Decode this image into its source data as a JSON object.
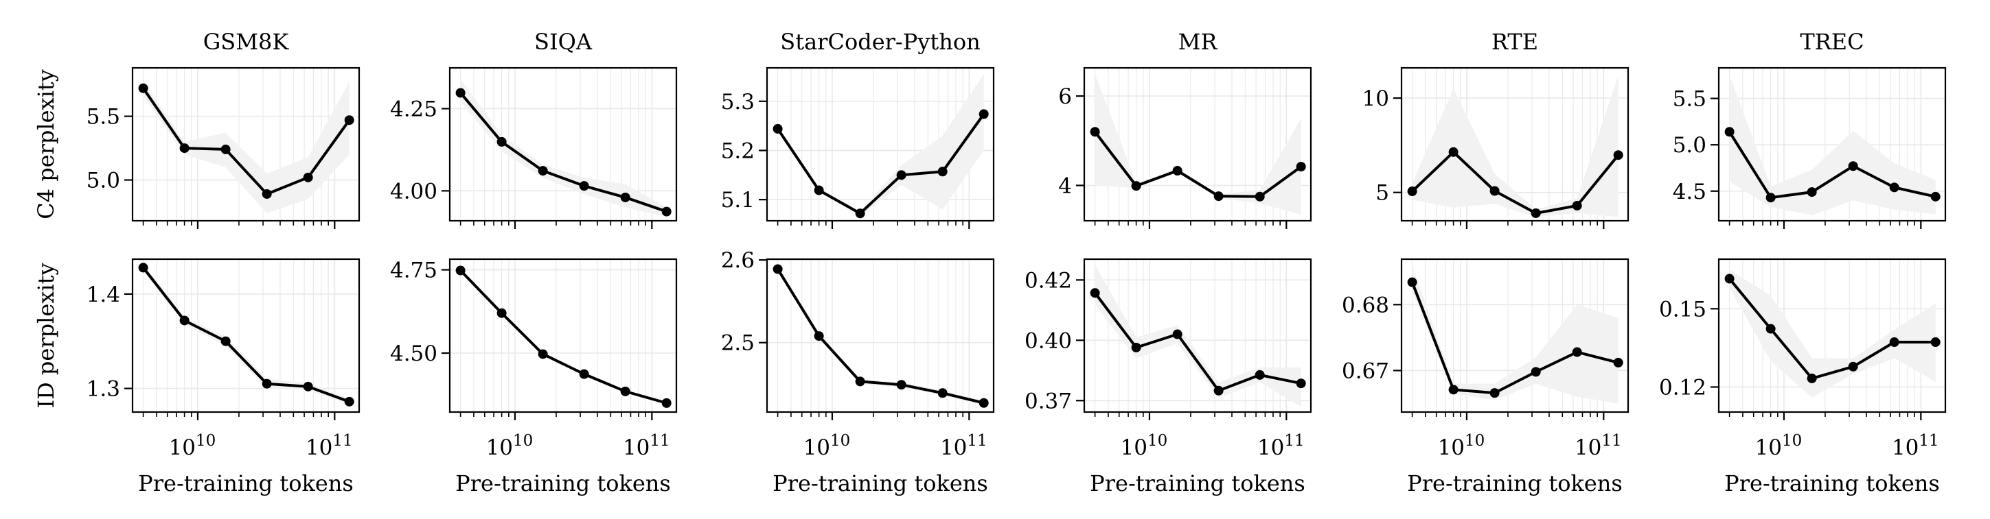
{
  "chart_data": [
    {
      "type": "line",
      "title": "GSM8K",
      "row": "top",
      "ylabel": "C4 perplexity",
      "xlabel": "",
      "xscale": "log",
      "xlim": [
        3340000000.0,
        151000000000.0
      ],
      "ylim": [
        4.68,
        5.88
      ],
      "yticks": [
        {
          "v": 5.0,
          "label": "5.0"
        },
        {
          "v": 5.5,
          "label": "5.5"
        }
      ],
      "x": [
        4000000000.0,
        8000000000.0,
        16000000000.0,
        32000000000.0,
        64000000000.0,
        128000000000.0
      ],
      "y": [
        5.72,
        5.25,
        5.24,
        4.89,
        5.02,
        5.47
      ],
      "band_lower": [
        5.66,
        5.2,
        5.1,
        4.74,
        4.85,
        5.2
      ],
      "band_upper": [
        5.78,
        5.3,
        5.37,
        5.05,
        5.18,
        5.77
      ]
    },
    {
      "type": "line",
      "title": "SIQA",
      "row": "top",
      "ylabel": "",
      "xlabel": "",
      "xscale": "log",
      "xlim": [
        3340000000.0,
        151000000000.0
      ],
      "ylim": [
        3.909,
        4.374
      ],
      "yticks": [
        {
          "v": 4.0,
          "label": "4.00"
        },
        {
          "v": 4.25,
          "label": "4.25"
        }
      ],
      "x": [
        4000000000.0,
        8000000000.0,
        16000000000.0,
        32000000000.0,
        64000000000.0,
        128000000000.0
      ],
      "y": [
        4.298,
        4.149,
        4.061,
        4.015,
        3.98,
        3.937
      ],
      "band_lower": [
        4.27,
        4.12,
        4.04,
        3.99,
        3.95,
        3.92
      ],
      "band_upper": [
        4.34,
        4.17,
        4.08,
        4.04,
        4.02,
        3.95
      ]
    },
    {
      "type": "line",
      "title": "StarCoder-Python",
      "row": "top",
      "ylabel": "",
      "xlabel": "",
      "xscale": "log",
      "xlim": [
        3340000000.0,
        151000000000.0
      ],
      "ylim": [
        5.057,
        5.368
      ],
      "yticks": [
        {
          "v": 5.1,
          "label": "5.1"
        },
        {
          "v": 5.2,
          "label": "5.2"
        },
        {
          "v": 5.3,
          "label": "5.3"
        }
      ],
      "x": [
        4000000000.0,
        8000000000.0,
        16000000000.0,
        32000000000.0,
        64000000000.0,
        128000000000.0
      ],
      "y": [
        5.244,
        5.119,
        5.072,
        5.15,
        5.157,
        5.274
      ],
      "band_lower": [
        5.24,
        5.115,
        5.068,
        5.13,
        5.08,
        5.2
      ],
      "band_upper": [
        5.25,
        5.124,
        5.076,
        5.17,
        5.23,
        5.355
      ]
    },
    {
      "type": "line",
      "title": "MR",
      "row": "top",
      "ylabel": "",
      "xlabel": "",
      "xscale": "log",
      "xlim": [
        3340000000.0,
        151000000000.0
      ],
      "ylim": [
        3.21,
        6.63
      ],
      "yticks": [
        {
          "v": 4,
          "label": "4"
        },
        {
          "v": 6,
          "label": "6"
        }
      ],
      "x": [
        4000000000.0,
        8000000000.0,
        16000000000.0,
        32000000000.0,
        64000000000.0,
        128000000000.0
      ],
      "y": [
        5.2,
        3.99,
        4.33,
        3.76,
        3.75,
        4.42
      ],
      "band_lower": [
        4.0,
        3.95,
        4.28,
        3.72,
        3.6,
        3.35
      ],
      "band_upper": [
        6.5,
        4.05,
        4.38,
        3.8,
        3.9,
        5.5
      ]
    },
    {
      "type": "line",
      "title": "RTE",
      "row": "top",
      "ylabel": "",
      "xlabel": "",
      "xscale": "log",
      "xlim": [
        3340000000.0,
        151000000000.0
      ],
      "ylim": [
        3.5,
        11.6
      ],
      "yticks": [
        {
          "v": 5,
          "label": "5"
        },
        {
          "v": 10,
          "label": "10"
        }
      ],
      "x": [
        4000000000.0,
        8000000000.0,
        16000000000.0,
        32000000000.0,
        64000000000.0,
        128000000000.0
      ],
      "y": [
        5.06,
        7.14,
        5.08,
        3.9,
        4.3,
        6.98
      ],
      "band_lower": [
        4.6,
        4.2,
        4.4,
        3.7,
        3.9,
        3.7
      ],
      "band_upper": [
        5.5,
        10.5,
        6.0,
        4.1,
        4.7,
        11.2
      ]
    },
    {
      "type": "line",
      "title": "TREC",
      "row": "top",
      "ylabel": "",
      "xlabel": "",
      "xscale": "log",
      "xlim": [
        3340000000.0,
        151000000000.0
      ],
      "ylim": [
        4.18,
        5.83
      ],
      "yticks": [
        {
          "v": 4.5,
          "label": "4.5"
        },
        {
          "v": 5.0,
          "label": "5.0"
        },
        {
          "v": 5.5,
          "label": "5.5"
        }
      ],
      "x": [
        4000000000.0,
        8000000000.0,
        16000000000.0,
        32000000000.0,
        64000000000.0,
        128000000000.0
      ],
      "y": [
        5.14,
        4.43,
        4.49,
        4.77,
        4.54,
        4.44
      ],
      "band_lower": [
        4.6,
        4.33,
        4.24,
        4.4,
        4.3,
        4.25
      ],
      "band_upper": [
        5.75,
        4.55,
        4.73,
        5.15,
        4.8,
        4.62
      ]
    },
    {
      "type": "line",
      "title": "",
      "row": "bottom",
      "ylabel": "ID perplexity",
      "xlabel": "Pre-training tokens",
      "xscale": "log",
      "xlim": [
        3340000000.0,
        151000000000.0
      ],
      "ylim": [
        1.275,
        1.437
      ],
      "yticks": [
        {
          "v": 1.3,
          "label": "1.3"
        },
        {
          "v": 1.4,
          "label": "1.4"
        }
      ],
      "x": [
        4000000000.0,
        8000000000.0,
        16000000000.0,
        32000000000.0,
        64000000000.0,
        128000000000.0
      ],
      "y": [
        1.428,
        1.372,
        1.35,
        1.305,
        1.302,
        1.286
      ],
      "band_lower": [
        1.424,
        1.368,
        1.345,
        1.3,
        1.298,
        1.283
      ],
      "band_upper": [
        1.432,
        1.376,
        1.355,
        1.31,
        1.306,
        1.289
      ]
    },
    {
      "type": "line",
      "title": "",
      "row": "bottom",
      "ylabel": "",
      "xlabel": "Pre-training tokens",
      "xscale": "log",
      "xlim": [
        3340000000.0,
        151000000000.0
      ],
      "ylim": [
        4.323,
        4.782
      ],
      "yticks": [
        {
          "v": 4.5,
          "label": "4.50"
        },
        {
          "v": 4.75,
          "label": "4.75"
        }
      ],
      "x": [
        4000000000.0,
        8000000000.0,
        16000000000.0,
        32000000000.0,
        64000000000.0,
        128000000000.0
      ],
      "y": [
        4.748,
        4.62,
        4.497,
        4.437,
        4.385,
        4.35
      ],
      "band_lower": [
        4.744,
        4.616,
        4.493,
        4.433,
        4.381,
        4.346
      ],
      "band_upper": [
        4.752,
        4.624,
        4.501,
        4.441,
        4.389,
        4.354
      ]
    },
    {
      "type": "line",
      "title": "",
      "row": "bottom",
      "ylabel": "",
      "xlabel": "Pre-training tokens",
      "xscale": "log",
      "xlim": [
        3340000000.0,
        151000000000.0
      ],
      "ylim": [
        2.416,
        2.601
      ],
      "yticks": [
        {
          "v": 2.5,
          "label": "2.5"
        },
        {
          "v": 2.6,
          "label": "2.6"
        }
      ],
      "x": [
        4000000000.0,
        8000000000.0,
        16000000000.0,
        32000000000.0,
        64000000000.0,
        128000000000.0
      ],
      "y": [
        2.589,
        2.508,
        2.453,
        2.449,
        2.439,
        2.427
      ],
      "band_lower": [
        2.586,
        2.505,
        2.45,
        2.446,
        2.436,
        2.424
      ],
      "band_upper": [
        2.592,
        2.511,
        2.456,
        2.452,
        2.442,
        2.43
      ]
    },
    {
      "type": "line",
      "title": "",
      "row": "bottom",
      "ylabel": "",
      "xlabel": "Pre-training tokens",
      "xscale": "log",
      "xlim": [
        3340000000.0,
        151000000000.0
      ],
      "ylim": [
        0.3712,
        0.4219
      ],
      "yticks": [
        {
          "v": 0.375,
          "label": "0.37"
        },
        {
          "v": 0.395,
          "label": "0.40"
        },
        {
          "v": 0.415,
          "label": "0.42"
        }
      ],
      "x": [
        4000000000.0,
        8000000000.0,
        16000000000.0,
        32000000000.0,
        64000000000.0,
        128000000000.0
      ],
      "y": [
        0.4107,
        0.3926,
        0.397,
        0.3783,
        0.3835,
        0.3807
      ],
      "band_lower": [
        0.407,
        0.389,
        0.394,
        0.376,
        0.381,
        0.373
      ],
      "band_upper": [
        0.42,
        0.396,
        0.4,
        0.381,
        0.386,
        0.386
      ]
    },
    {
      "type": "line",
      "title": "",
      "row": "bottom",
      "ylabel": "",
      "xlabel": "Pre-training tokens",
      "xscale": "log",
      "xlim": [
        3340000000.0,
        151000000000.0
      ],
      "ylim": [
        0.6637,
        0.6869
      ],
      "yticks": [
        {
          "v": 0.67,
          "label": "0.67"
        },
        {
          "v": 0.68,
          "label": "0.68"
        }
      ],
      "x": [
        4000000000.0,
        8000000000.0,
        16000000000.0,
        32000000000.0,
        64000000000.0,
        128000000000.0
      ],
      "y": [
        0.6834,
        0.6671,
        0.6666,
        0.6698,
        0.6728,
        0.6712
      ],
      "band_lower": [
        0.682,
        0.6665,
        0.6655,
        0.668,
        0.666,
        0.665
      ],
      "band_upper": [
        0.686,
        0.668,
        0.668,
        0.672,
        0.68,
        0.678
      ]
    },
    {
      "type": "line",
      "title": "",
      "row": "bottom",
      "ylabel": "",
      "xlabel": "Pre-training tokens",
      "xscale": "log",
      "xlim": [
        3340000000.0,
        151000000000.0
      ],
      "ylim": [
        0.1104,
        0.169
      ],
      "yticks": [
        {
          "v": 0.12,
          "label": "0.12"
        },
        {
          "v": 0.15,
          "label": "0.15"
        }
      ],
      "x": [
        4000000000.0,
        8000000000.0,
        16000000000.0,
        32000000000.0,
        64000000000.0,
        128000000000.0
      ],
      "y": [
        0.1615,
        0.1423,
        0.1233,
        0.1278,
        0.1372,
        0.1372
      ],
      "band_lower": [
        0.158,
        0.13,
        0.116,
        0.125,
        0.131,
        0.122
      ],
      "band_upper": [
        0.165,
        0.155,
        0.131,
        0.131,
        0.142,
        0.152
      ]
    }
  ],
  "xticks": [
    {
      "v": 10000000000.0,
      "base": "10",
      "exp": "10"
    },
    {
      "v": 100000000000.0,
      "base": "10",
      "exp": "11"
    }
  ],
  "colors": {
    "line": "#000000",
    "band": "#f2f2f2",
    "grid": "#e8e8e8"
  },
  "grid": true
}
